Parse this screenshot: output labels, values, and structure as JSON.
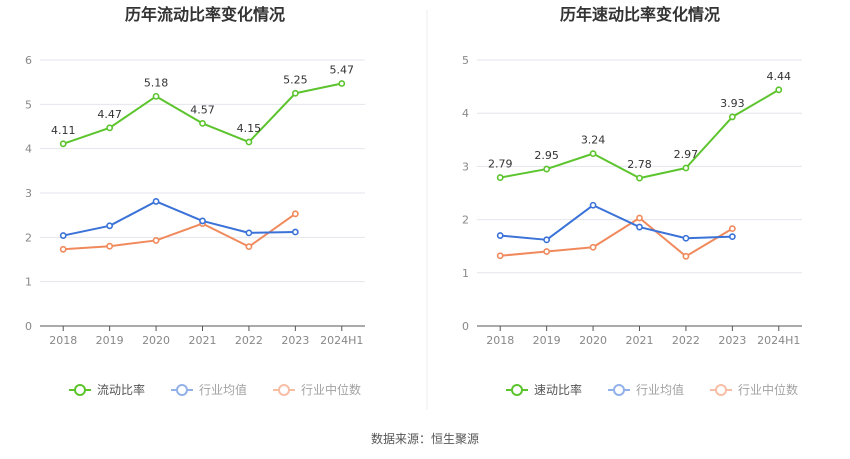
{
  "colors": {
    "main": "#5CC42D",
    "avg": "#3A72D8",
    "median": "#F08A5D",
    "grid": "#E4E6EC",
    "axis": "#555555"
  },
  "source": "数据来源：恒生聚源",
  "chart_data": [
    {
      "type": "line",
      "title": "历年流动比率变化情况",
      "categories": [
        "2018",
        "2019",
        "2020",
        "2021",
        "2022",
        "2023",
        "2024H1"
      ],
      "ylim": [
        0,
        6
      ],
      "yticks": [
        "0",
        "1",
        "2",
        "3",
        "4",
        "5",
        "6"
      ],
      "grid": true,
      "legend": "bottom",
      "series": [
        {
          "name": "流动比率",
          "values": [
            4.11,
            4.47,
            5.18,
            4.57,
            4.15,
            5.25,
            5.47
          ],
          "labels": [
            "4.11",
            "4.47",
            "5.18",
            "4.57",
            "4.15",
            "5.25",
            "5.47"
          ]
        },
        {
          "name": "行业均值",
          "values": [
            2.04,
            2.26,
            2.81,
            2.37,
            2.1,
            2.12,
            null
          ]
        },
        {
          "name": "行业中位数",
          "values": [
            1.73,
            1.8,
            1.93,
            2.31,
            1.79,
            2.53,
            null
          ]
        }
      ]
    },
    {
      "type": "line",
      "title": "历年速动比率变化情况",
      "categories": [
        "2018",
        "2019",
        "2020",
        "2021",
        "2022",
        "2023",
        "2024H1"
      ],
      "ylim": [
        0,
        5
      ],
      "yticks": [
        "0",
        "1",
        "2",
        "3",
        "4",
        "5"
      ],
      "grid": true,
      "legend": "bottom",
      "series": [
        {
          "name": "速动比率",
          "values": [
            2.79,
            2.95,
            3.24,
            2.78,
            2.97,
            3.93,
            4.44
          ],
          "labels": [
            "2.79",
            "2.95",
            "3.24",
            "2.78",
            "2.97",
            "3.93",
            "4.44"
          ]
        },
        {
          "name": "行业均值",
          "values": [
            1.7,
            1.62,
            2.27,
            1.86,
            1.65,
            1.68,
            null
          ]
        },
        {
          "name": "行业中位数",
          "values": [
            1.32,
            1.4,
            1.48,
            2.03,
            1.31,
            1.83,
            null
          ]
        }
      ]
    }
  ]
}
